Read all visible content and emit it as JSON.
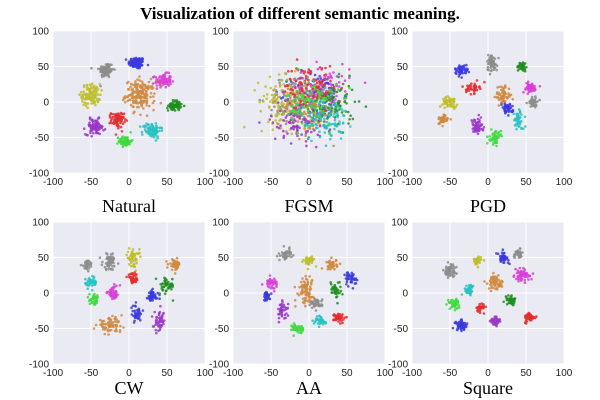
{
  "figure": {
    "title": "Visualization of different semantic meaning."
  },
  "chart_data": [
    {
      "type": "scatter",
      "caption": "Natural",
      "xlim": [
        -100,
        100
      ],
      "ylim": [
        -100,
        100
      ],
      "xticks": [
        -100,
        -50,
        0,
        50,
        100
      ],
      "yticks": [
        -100,
        -50,
        0,
        50,
        100
      ],
      "grid": true,
      "clusters": [
        {
          "color": "#3a3adf",
          "cx": 10,
          "cy": 55,
          "sx": 9,
          "sy": 7,
          "n": 90
        },
        {
          "color": "#8c8c8c",
          "cx": -30,
          "cy": 45,
          "sx": 8,
          "sy": 9,
          "n": 90
        },
        {
          "color": "#d940d9",
          "cx": 45,
          "cy": 30,
          "sx": 9,
          "sy": 8,
          "n": 90
        },
        {
          "color": "#bebe2a",
          "cx": -50,
          "cy": 10,
          "sx": 10,
          "sy": 13,
          "n": 110
        },
        {
          "color": "#d08a40",
          "cx": 15,
          "cy": 10,
          "sx": 16,
          "sy": 17,
          "n": 170
        },
        {
          "color": "#1f8f1f",
          "cx": 60,
          "cy": -5,
          "sx": 7,
          "sy": 6,
          "n": 70
        },
        {
          "color": "#e62b2b",
          "cx": -15,
          "cy": -25,
          "sx": 7,
          "sy": 9,
          "n": 80
        },
        {
          "color": "#9a38c8",
          "cx": -45,
          "cy": -35,
          "sx": 10,
          "sy": 9,
          "n": 90
        },
        {
          "color": "#29c2c2",
          "cx": 30,
          "cy": -40,
          "sx": 10,
          "sy": 9,
          "n": 90
        },
        {
          "color": "#3fd93f",
          "cx": -5,
          "cy": -55,
          "sx": 7,
          "sy": 6,
          "n": 70
        }
      ]
    },
    {
      "type": "scatter",
      "caption": "FGSM",
      "xlim": [
        -100,
        100
      ],
      "ylim": [
        -100,
        100
      ],
      "xticks": [
        -100,
        -50,
        0,
        50,
        100
      ],
      "yticks": [
        -100,
        -50,
        0,
        50,
        100
      ],
      "grid": true,
      "clusters": [
        {
          "color": "#3a3adf",
          "cx": 10,
          "cy": 10,
          "sx": 28,
          "sy": 28,
          "n": 100
        },
        {
          "color": "#8c8c8c",
          "cx": -20,
          "cy": 5,
          "sx": 28,
          "sy": 28,
          "n": 100
        },
        {
          "color": "#d940d9",
          "cx": 20,
          "cy": 20,
          "sx": 28,
          "sy": 28,
          "n": 100
        },
        {
          "color": "#bebe2a",
          "cx": -35,
          "cy": 0,
          "sx": 26,
          "sy": 28,
          "n": 100
        },
        {
          "color": "#d08a40",
          "cx": -5,
          "cy": -10,
          "sx": 30,
          "sy": 30,
          "n": 120
        },
        {
          "color": "#1f8f1f",
          "cx": 30,
          "cy": -5,
          "sx": 26,
          "sy": 28,
          "n": 100
        },
        {
          "color": "#e62b2b",
          "cx": 0,
          "cy": 20,
          "sx": 28,
          "sy": 28,
          "n": 100
        },
        {
          "color": "#9a38c8",
          "cx": -15,
          "cy": -25,
          "sx": 28,
          "sy": 26,
          "n": 100
        },
        {
          "color": "#29c2c2",
          "cx": 20,
          "cy": -25,
          "sx": 26,
          "sy": 26,
          "n": 100
        },
        {
          "color": "#3fd93f",
          "cx": 5,
          "cy": 0,
          "sx": 28,
          "sy": 28,
          "n": 100
        }
      ]
    },
    {
      "type": "scatter",
      "caption": "PGD",
      "xlim": [
        -100,
        100
      ],
      "ylim": [
        -100,
        100
      ],
      "xticks": [
        -100,
        -50,
        0,
        50,
        100
      ],
      "yticks": [
        -100,
        -50,
        0,
        50,
        100
      ],
      "grid": true,
      "clusters": [
        {
          "color": "#3a3adf",
          "cx": -35,
          "cy": 45,
          "sx": 7,
          "sy": 6,
          "n": 50
        },
        {
          "color": "#8c8c8c",
          "cx": 5,
          "cy": 55,
          "sx": 6,
          "sy": 10,
          "n": 60
        },
        {
          "color": "#d940d9",
          "cx": 55,
          "cy": 20,
          "sx": 8,
          "sy": 6,
          "n": 50
        },
        {
          "color": "#bebe2a",
          "cx": -50,
          "cy": 0,
          "sx": 8,
          "sy": 6,
          "n": 50
        },
        {
          "color": "#d08a40",
          "cx": 20,
          "cy": 10,
          "sx": 8,
          "sy": 12,
          "n": 60
        },
        {
          "color": "#1f8f1f",
          "cx": 45,
          "cy": 50,
          "sx": 6,
          "sy": 6,
          "n": 40
        },
        {
          "color": "#e62b2b",
          "cx": -20,
          "cy": 20,
          "sx": 7,
          "sy": 6,
          "n": 40
        },
        {
          "color": "#9a38c8",
          "cx": -15,
          "cy": -35,
          "sx": 7,
          "sy": 10,
          "n": 60
        },
        {
          "color": "#29c2c2",
          "cx": 40,
          "cy": -25,
          "sx": 6,
          "sy": 12,
          "n": 50
        },
        {
          "color": "#3fd93f",
          "cx": 10,
          "cy": -50,
          "sx": 6,
          "sy": 8,
          "n": 50
        },
        {
          "color": "#d08a40",
          "cx": -60,
          "cy": -25,
          "sx": 6,
          "sy": 6,
          "n": 40
        },
        {
          "color": "#8c8c8c",
          "cx": 60,
          "cy": 0,
          "sx": 6,
          "sy": 6,
          "n": 40
        },
        {
          "color": "#3a3adf",
          "cx": 25,
          "cy": -10,
          "sx": 6,
          "sy": 6,
          "n": 40
        }
      ]
    },
    {
      "type": "scatter",
      "caption": "CW",
      "xlim": [
        -100,
        100
      ],
      "ylim": [
        -100,
        100
      ],
      "xticks": [
        -100,
        -50,
        0,
        50,
        100
      ],
      "yticks": [
        -100,
        -50,
        0,
        50,
        100
      ],
      "grid": true,
      "clusters": [
        {
          "color": "#8c8c8c",
          "cx": -25,
          "cy": 45,
          "sx": 8,
          "sy": 10,
          "n": 60
        },
        {
          "color": "#3a3adf",
          "cx": 30,
          "cy": -5,
          "sx": 7,
          "sy": 7,
          "n": 50
        },
        {
          "color": "#d940d9",
          "cx": -20,
          "cy": 0,
          "sx": 7,
          "sy": 8,
          "n": 50
        },
        {
          "color": "#bebe2a",
          "cx": 5,
          "cy": 50,
          "sx": 7,
          "sy": 10,
          "n": 50
        },
        {
          "color": "#d08a40",
          "cx": -25,
          "cy": -45,
          "sx": 14,
          "sy": 8,
          "n": 70
        },
        {
          "color": "#1f8f1f",
          "cx": 50,
          "cy": 10,
          "sx": 8,
          "sy": 10,
          "n": 50
        },
        {
          "color": "#e62b2b",
          "cx": 5,
          "cy": 20,
          "sx": 6,
          "sy": 6,
          "n": 40
        },
        {
          "color": "#9a38c8",
          "cx": 40,
          "cy": -40,
          "sx": 6,
          "sy": 12,
          "n": 50
        },
        {
          "color": "#29c2c2",
          "cx": -50,
          "cy": 15,
          "sx": 7,
          "sy": 7,
          "n": 40
        },
        {
          "color": "#3fd93f",
          "cx": -45,
          "cy": -10,
          "sx": 6,
          "sy": 6,
          "n": 40
        },
        {
          "color": "#d08a40",
          "cx": 60,
          "cy": 40,
          "sx": 6,
          "sy": 6,
          "n": 40
        },
        {
          "color": "#8c8c8c",
          "cx": -55,
          "cy": 40,
          "sx": 6,
          "sy": 6,
          "n": 30
        },
        {
          "color": "#3a3adf",
          "cx": 10,
          "cy": -30,
          "sx": 6,
          "sy": 10,
          "n": 40
        }
      ]
    },
    {
      "type": "scatter",
      "caption": "AA",
      "xlim": [
        -100,
        100
      ],
      "ylim": [
        -100,
        100
      ],
      "xticks": [
        -100,
        -50,
        0,
        50,
        100
      ],
      "yticks": [
        -100,
        -50,
        0,
        50,
        100
      ],
      "grid": true,
      "clusters": [
        {
          "color": "#8c8c8c",
          "cx": -30,
          "cy": 55,
          "sx": 6,
          "sy": 6,
          "n": 40
        },
        {
          "color": "#3a3adf",
          "cx": 55,
          "cy": 20,
          "sx": 6,
          "sy": 8,
          "n": 40
        },
        {
          "color": "#d940d9",
          "cx": -50,
          "cy": 15,
          "sx": 7,
          "sy": 6,
          "n": 40
        },
        {
          "color": "#bebe2a",
          "cx": 0,
          "cy": 45,
          "sx": 6,
          "sy": 6,
          "n": 40
        },
        {
          "color": "#d08a40",
          "cx": -5,
          "cy": 5,
          "sx": 9,
          "sy": 16,
          "n": 80
        },
        {
          "color": "#1f8f1f",
          "cx": 35,
          "cy": 5,
          "sx": 6,
          "sy": 10,
          "n": 40
        },
        {
          "color": "#e62b2b",
          "cx": 40,
          "cy": -35,
          "sx": 6,
          "sy": 6,
          "n": 40
        },
        {
          "color": "#9a38c8",
          "cx": -35,
          "cy": -25,
          "sx": 6,
          "sy": 10,
          "n": 40
        },
        {
          "color": "#29c2c2",
          "cx": 15,
          "cy": -40,
          "sx": 7,
          "sy": 7,
          "n": 40
        },
        {
          "color": "#3fd93f",
          "cx": -15,
          "cy": -50,
          "sx": 6,
          "sy": 6,
          "n": 40
        },
        {
          "color": "#d08a40",
          "cx": 30,
          "cy": 40,
          "sx": 6,
          "sy": 6,
          "n": 40
        },
        {
          "color": "#8c8c8c",
          "cx": 10,
          "cy": -15,
          "sx": 6,
          "sy": 6,
          "n": 40
        },
        {
          "color": "#3a3adf",
          "cx": -55,
          "cy": -5,
          "sx": 5,
          "sy": 5,
          "n": 30
        }
      ]
    },
    {
      "type": "scatter",
      "caption": "Square",
      "xlim": [
        -100,
        100
      ],
      "ylim": [
        -100,
        100
      ],
      "xticks": [
        -100,
        -50,
        0,
        50,
        100
      ],
      "yticks": [
        -100,
        -50,
        0,
        50,
        100
      ],
      "grid": true,
      "clusters": [
        {
          "color": "#3a3adf",
          "cx": -35,
          "cy": -45,
          "sx": 7,
          "sy": 6,
          "n": 60
        },
        {
          "color": "#8c8c8c",
          "cx": -50,
          "cy": 30,
          "sx": 7,
          "sy": 8,
          "n": 50
        },
        {
          "color": "#d940d9",
          "cx": 45,
          "cy": 25,
          "sx": 8,
          "sy": 7,
          "n": 60
        },
        {
          "color": "#bebe2a",
          "cx": -15,
          "cy": 45,
          "sx": 5,
          "sy": 5,
          "n": 40
        },
        {
          "color": "#d08a40",
          "cx": 10,
          "cy": 15,
          "sx": 8,
          "sy": 8,
          "n": 60
        },
        {
          "color": "#1f8f1f",
          "cx": 30,
          "cy": -10,
          "sx": 6,
          "sy": 6,
          "n": 40
        },
        {
          "color": "#e62b2b",
          "cx": 55,
          "cy": -35,
          "sx": 6,
          "sy": 6,
          "n": 40
        },
        {
          "color": "#9a38c8",
          "cx": 10,
          "cy": -40,
          "sx": 6,
          "sy": 6,
          "n": 40
        },
        {
          "color": "#29c2c2",
          "cx": -25,
          "cy": 5,
          "sx": 6,
          "sy": 6,
          "n": 40
        },
        {
          "color": "#3fd93f",
          "cx": -45,
          "cy": -15,
          "sx": 6,
          "sy": 6,
          "n": 40
        },
        {
          "color": "#3a3adf",
          "cx": 20,
          "cy": 50,
          "sx": 6,
          "sy": 6,
          "n": 40
        },
        {
          "color": "#8c8c8c",
          "cx": 40,
          "cy": 55,
          "sx": 5,
          "sy": 5,
          "n": 30
        },
        {
          "color": "#e62b2b",
          "cx": -10,
          "cy": -20,
          "sx": 5,
          "sy": 5,
          "n": 30
        }
      ]
    }
  ]
}
